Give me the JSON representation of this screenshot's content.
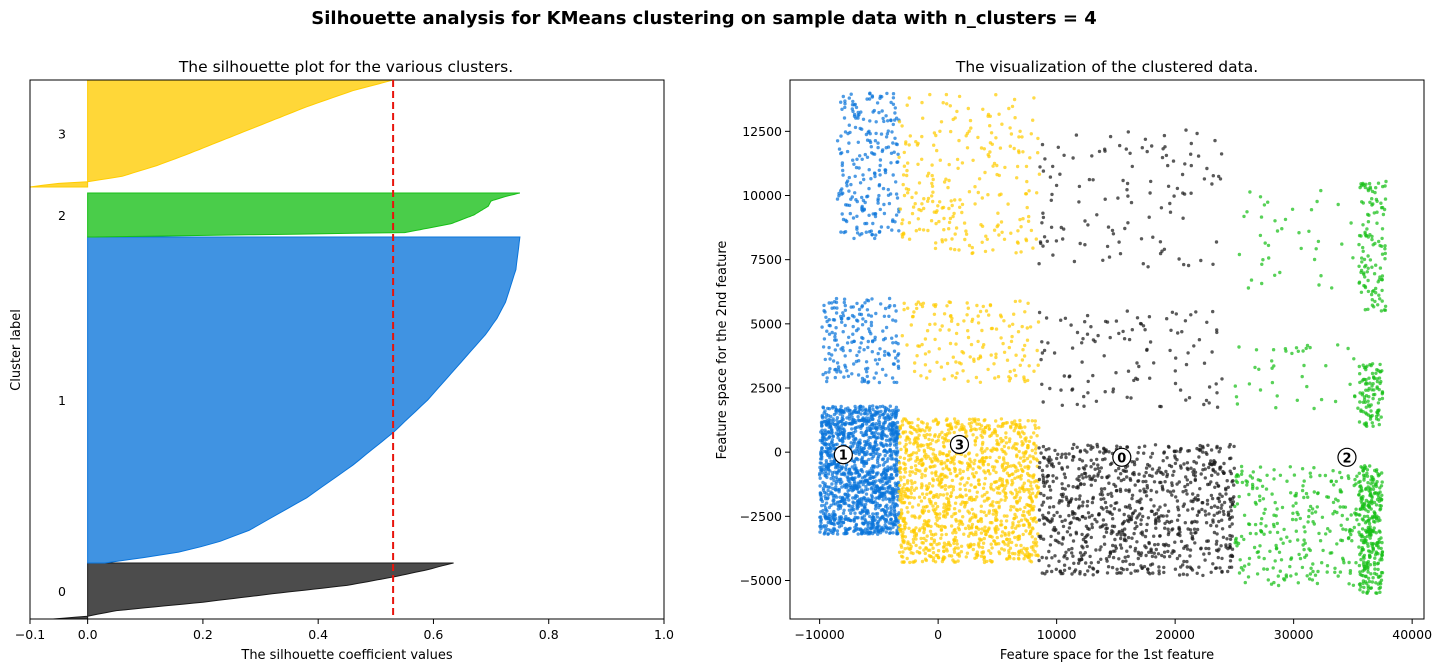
{
  "suptitle": "Silhouette analysis for KMeans clustering on sample data with n_clusters = 4",
  "colors": {
    "cluster_0": "#1a1a1a",
    "cluster_1": "#0a74da",
    "cluster_2": "#17bf17",
    "cluster_3": "#ffcc00",
    "average_line": "#e8140c"
  },
  "chart_data": [
    {
      "type": "area",
      "title": "The silhouette plot for the various clusters.",
      "xlabel": "The silhouette coefficient values",
      "ylabel": "Cluster label",
      "xlim": [
        -0.1,
        1.0
      ],
      "xticks": [
        -0.1,
        0.0,
        0.2,
        0.4,
        0.6,
        0.8,
        1.0
      ],
      "xtick_labels": [
        "−0.1",
        "0.0",
        "0.2",
        "0.4",
        "0.6",
        "0.8",
        "1.0"
      ],
      "grid": false,
      "silhouette_avg": 0.53,
      "clusters": [
        {
          "label": "0",
          "color": "#1a1a1a",
          "profile": [
            [
              0.0,
              -0.06
            ],
            [
              0.05,
              0.0
            ],
            [
              0.15,
              0.05
            ],
            [
              0.3,
              0.2
            ],
            [
              0.45,
              0.32
            ],
            [
              0.6,
              0.45
            ],
            [
              0.75,
              0.53
            ],
            [
              0.88,
              0.59
            ],
            [
              0.95,
              0.615
            ],
            [
              1.0,
              0.635
            ]
          ]
        },
        {
          "label": "1",
          "color": "#0a74da",
          "profile": [
            [
              0.0,
              0.03
            ],
            [
              0.03,
              0.15
            ],
            [
              0.06,
              0.22
            ],
            [
              0.1,
              0.28
            ],
            [
              0.2,
              0.38
            ],
            [
              0.3,
              0.46
            ],
            [
              0.4,
              0.53
            ],
            [
              0.5,
              0.59
            ],
            [
              0.6,
              0.64
            ],
            [
              0.7,
              0.69
            ],
            [
              0.75,
              0.71
            ],
            [
              0.8,
              0.725
            ],
            [
              0.9,
              0.743
            ],
            [
              1.0,
              0.75
            ]
          ]
        },
        {
          "label": "2",
          "color": "#17bf17",
          "profile": [
            [
              0.0,
              0.01
            ],
            [
              0.1,
              0.55
            ],
            [
              0.3,
              0.63
            ],
            [
              0.5,
              0.67
            ],
            [
              0.7,
              0.695
            ],
            [
              0.82,
              0.7
            ],
            [
              0.92,
              0.725
            ],
            [
              1.0,
              0.75
            ]
          ]
        },
        {
          "label": "3",
          "color": "#ffcc00",
          "profile": [
            [
              0.0,
              -0.1
            ],
            [
              0.03,
              -0.06
            ],
            [
              0.05,
              0.0
            ],
            [
              0.1,
              0.06
            ],
            [
              0.2,
              0.12
            ],
            [
              0.3,
              0.17
            ],
            [
              0.45,
              0.24
            ],
            [
              0.6,
              0.31
            ],
            [
              0.75,
              0.38
            ],
            [
              0.9,
              0.46
            ],
            [
              1.0,
              0.53
            ]
          ]
        }
      ]
    },
    {
      "type": "scatter",
      "title": "The visualization of the clustered data.",
      "xlabel": "Feature space for the 1st feature",
      "ylabel": "Feature space for the 2nd feature",
      "xlim": [
        -12500,
        41000
      ],
      "ylim": [
        -6500,
        14500
      ],
      "xticks": [
        -10000,
        0,
        10000,
        20000,
        30000,
        40000
      ],
      "xtick_labels": [
        "−10000",
        "0",
        "10000",
        "20000",
        "30000",
        "40000"
      ],
      "yticks": [
        -5000,
        -2500,
        0,
        2500,
        5000,
        7500,
        10000,
        12500
      ],
      "ytick_labels": [
        "−5000",
        "−2500",
        "0",
        "2500",
        "5000",
        "7500",
        "10000",
        "12500"
      ],
      "grid": false,
      "centers": [
        {
          "label": "0",
          "x": 15500,
          "y": -200
        },
        {
          "label": "1",
          "x": -8000,
          "y": -100
        },
        {
          "label": "2",
          "x": 34500,
          "y": -200
        },
        {
          "label": "3",
          "x": 1800,
          "y": 300
        }
      ],
      "point_groups": [
        {
          "cluster": "1",
          "x": [
            -10000,
            -3300
          ],
          "y": [
            -3200,
            1800
          ],
          "n": 1400
        },
        {
          "cluster": "1",
          "x": [
            -9800,
            -3200
          ],
          "y": [
            2700,
            6000
          ],
          "n": 190
        },
        {
          "cluster": "1",
          "x": [
            -8500,
            -3300
          ],
          "y": [
            8300,
            14000
          ],
          "n": 230
        },
        {
          "cluster": "3",
          "x": [
            -3300,
            8500
          ],
          "y": [
            -4300,
            1300
          ],
          "n": 1250
        },
        {
          "cluster": "3",
          "x": [
            -3200,
            8600
          ],
          "y": [
            2700,
            5900
          ],
          "n": 150
        },
        {
          "cluster": "3",
          "x": [
            -3300,
            8600
          ],
          "y": [
            7700,
            14000
          ],
          "n": 240
        },
        {
          "cluster": "0",
          "x": [
            8500,
            25000
          ],
          "y": [
            -4800,
            300
          ],
          "n": 900
        },
        {
          "cluster": "0",
          "x": [
            8500,
            24000
          ],
          "y": [
            1700,
            5500
          ],
          "n": 110
        },
        {
          "cluster": "0",
          "x": [
            8500,
            24000
          ],
          "y": [
            7200,
            12600
          ],
          "n": 120
        },
        {
          "cluster": "2",
          "x": [
            25000,
            35500
          ],
          "y": [
            -5200,
            -500
          ],
          "n": 260
        },
        {
          "cluster": "2",
          "x": [
            35500,
            37500
          ],
          "y": [
            -5500,
            -500
          ],
          "n": 300
        },
        {
          "cluster": "2",
          "x": [
            25000,
            35500
          ],
          "y": [
            1700,
            4200
          ],
          "n": 40
        },
        {
          "cluster": "2",
          "x": [
            35500,
            37500
          ],
          "y": [
            1000,
            3500
          ],
          "n": 100
        },
        {
          "cluster": "2",
          "x": [
            25000,
            35500
          ],
          "y": [
            6300,
            10500
          ],
          "n": 40
        },
        {
          "cluster": "2",
          "x": [
            35500,
            37800
          ],
          "y": [
            5500,
            10600
          ],
          "n": 120
        }
      ]
    }
  ]
}
